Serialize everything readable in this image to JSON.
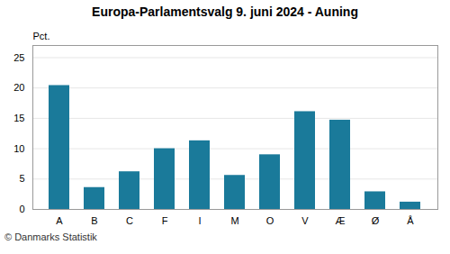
{
  "chart_data": {
    "type": "bar",
    "title": "Europa-Parlamentsvalg 9. juni 2024 - Auning",
    "ylabel": "Pct.",
    "footer": "© Danmarks Statistik",
    "categories": [
      "A",
      "B",
      "C",
      "F",
      "I",
      "M",
      "O",
      "V",
      "Æ",
      "Ø",
      "Å"
    ],
    "values": [
      20.4,
      3.6,
      6.2,
      10.0,
      11.3,
      5.6,
      9.0,
      16.1,
      14.7,
      2.9,
      1.2
    ],
    "color": "#1a7a9a",
    "ylim": [
      0,
      27
    ],
    "yticks": [
      0,
      5,
      10,
      15,
      20,
      25
    ],
    "grid": true
  }
}
